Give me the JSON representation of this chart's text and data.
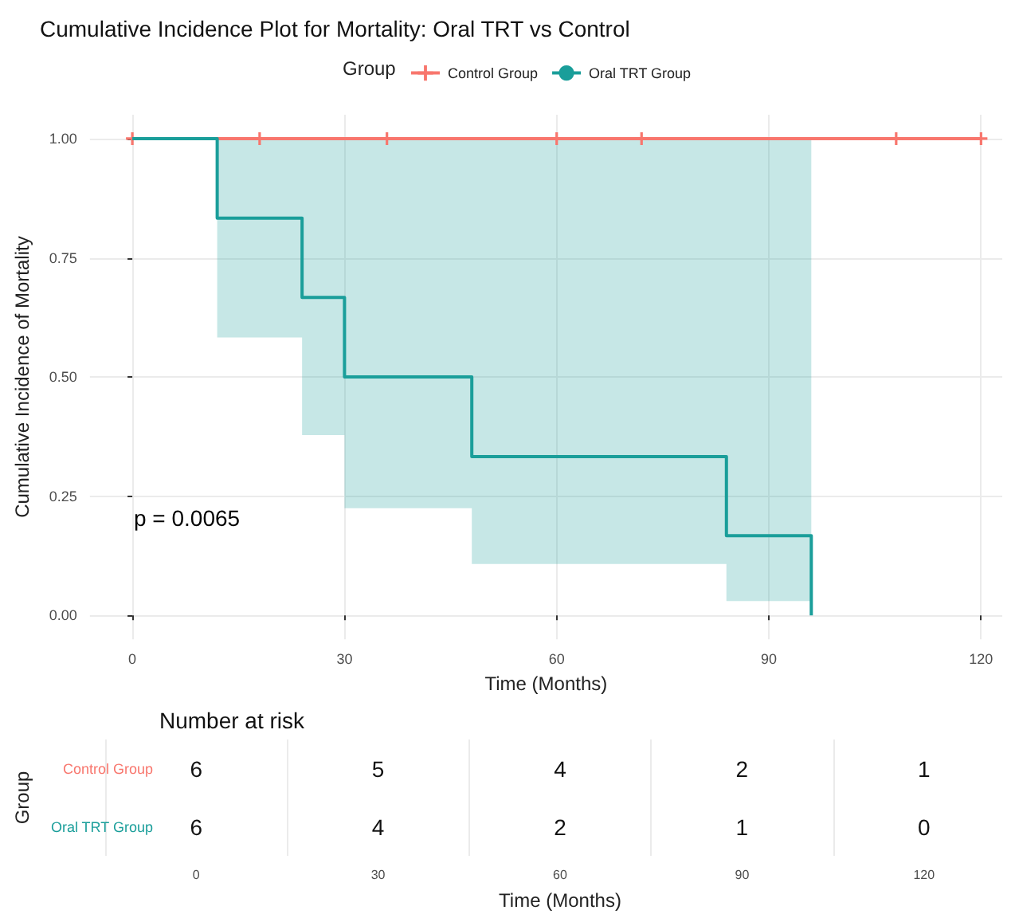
{
  "chart_data": [
    {
      "type": "step",
      "title": "Cumulative Incidence Plot for Mortality: Oral TRT vs Control",
      "xlabel": "Time (Months)",
      "ylabel": "Cumulative Incidence of Mortality",
      "legend_title": "Group",
      "legend": "top",
      "grid": true,
      "xlim": [
        -6,
        123
      ],
      "ylim": [
        -0.05,
        1.05
      ],
      "xticks": [
        0,
        30,
        60,
        90,
        120
      ],
      "yticks": [
        {
          "value": 0,
          "label": "0.00"
        },
        {
          "value": 0.25,
          "label": "0.25"
        },
        {
          "value": 0.5,
          "label": "0.50"
        },
        {
          "value": 0.75,
          "label": "0.75"
        },
        {
          "value": 1,
          "label": "1.00"
        }
      ],
      "annotations": [
        "p = 0.0065"
      ],
      "series": [
        {
          "name": "Control Group",
          "color": "#f8766d",
          "marker": "cross",
          "x": [
            0,
            18,
            36,
            60,
            72,
            108,
            120
          ],
          "values": [
            1,
            1,
            1,
            1,
            1,
            1,
            1
          ]
        },
        {
          "name": "Oral TRT Group",
          "color": "#1a9e9a",
          "marker": "none",
          "x": [
            0,
            12,
            24,
            30,
            48,
            84,
            96
          ],
          "values": [
            1,
            0.833,
            0.667,
            0.5,
            0.333,
            0.167,
            0
          ],
          "lower": [
            1,
            0.583,
            0.378,
            0.225,
            0.108,
            0.03,
            0.03
          ],
          "upper": [
            1,
            1,
            1,
            1,
            1,
            1,
            1
          ]
        }
      ]
    },
    {
      "type": "heatmap",
      "title": "Number at risk",
      "xlabel": "Time (Months)",
      "ylabel": "Group",
      "grid": true,
      "data_labels": true,
      "categories": [
        "0",
        "30",
        "60",
        "90",
        "120"
      ],
      "y_categories": [
        "Control Group",
        "Oral TRT Group"
      ],
      "cells": [
        [
          6,
          5,
          4,
          2,
          1
        ],
        [
          6,
          4,
          2,
          1,
          0
        ]
      ]
    }
  ]
}
